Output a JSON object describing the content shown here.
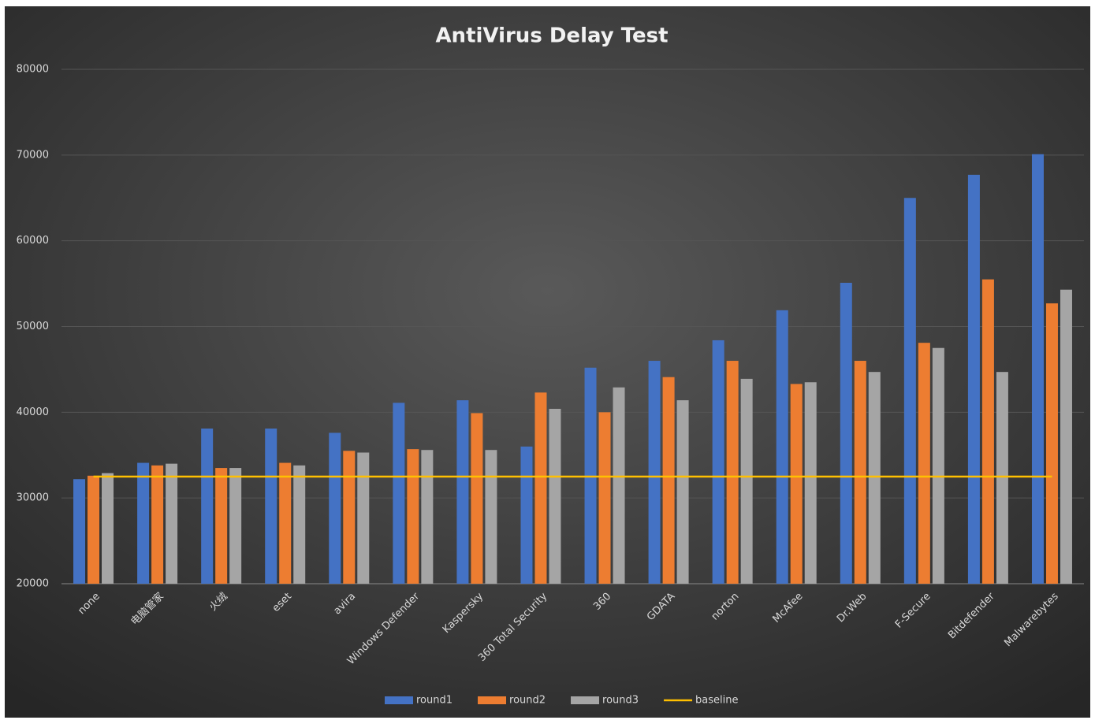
{
  "chart_data": {
    "type": "bar",
    "title": "AntiVirus Delay Test",
    "categories": [
      "none",
      "电脑管家",
      "火绒",
      "eset",
      "avira",
      "Windows Defender",
      "Kaspersky",
      "360 Total Security",
      "360",
      "GDATA",
      "norton",
      "McAfee",
      "Dr.Web",
      "F-Secure",
      "Bitdefender",
      "Malwarebytes"
    ],
    "series": [
      {
        "name": "round1",
        "color": "#4472c4",
        "values": [
          32200,
          34100,
          38100,
          38100,
          37600,
          41100,
          41400,
          36000,
          45200,
          46000,
          48400,
          51900,
          55100,
          65000,
          67700,
          70100
        ]
      },
      {
        "name": "round2",
        "color": "#ed7d31",
        "values": [
          32600,
          33800,
          33500,
          34100,
          35500,
          35700,
          39900,
          42300,
          40000,
          44100,
          46000,
          43300,
          46000,
          48100,
          55500,
          52700
        ]
      },
      {
        "name": "round3",
        "color": "#a5a5a5",
        "values": [
          32900,
          34000,
          33500,
          33800,
          35300,
          35600,
          35600,
          40400,
          42900,
          41400,
          43900,
          43500,
          44700,
          47500,
          44700,
          54300
        ]
      },
      {
        "name": "baseline",
        "type": "line",
        "color": "#ffc000",
        "values": [
          32500,
          32500,
          32500,
          32500,
          32500,
          32500,
          32500,
          32500,
          32500,
          32500,
          32500,
          32500,
          32500,
          32500,
          32500,
          32500
        ]
      }
    ],
    "ylim": [
      20000,
      80000
    ],
    "yticks": [
      20000,
      30000,
      40000,
      50000,
      60000,
      70000,
      80000
    ],
    "grid": true,
    "legend": "bottom"
  }
}
